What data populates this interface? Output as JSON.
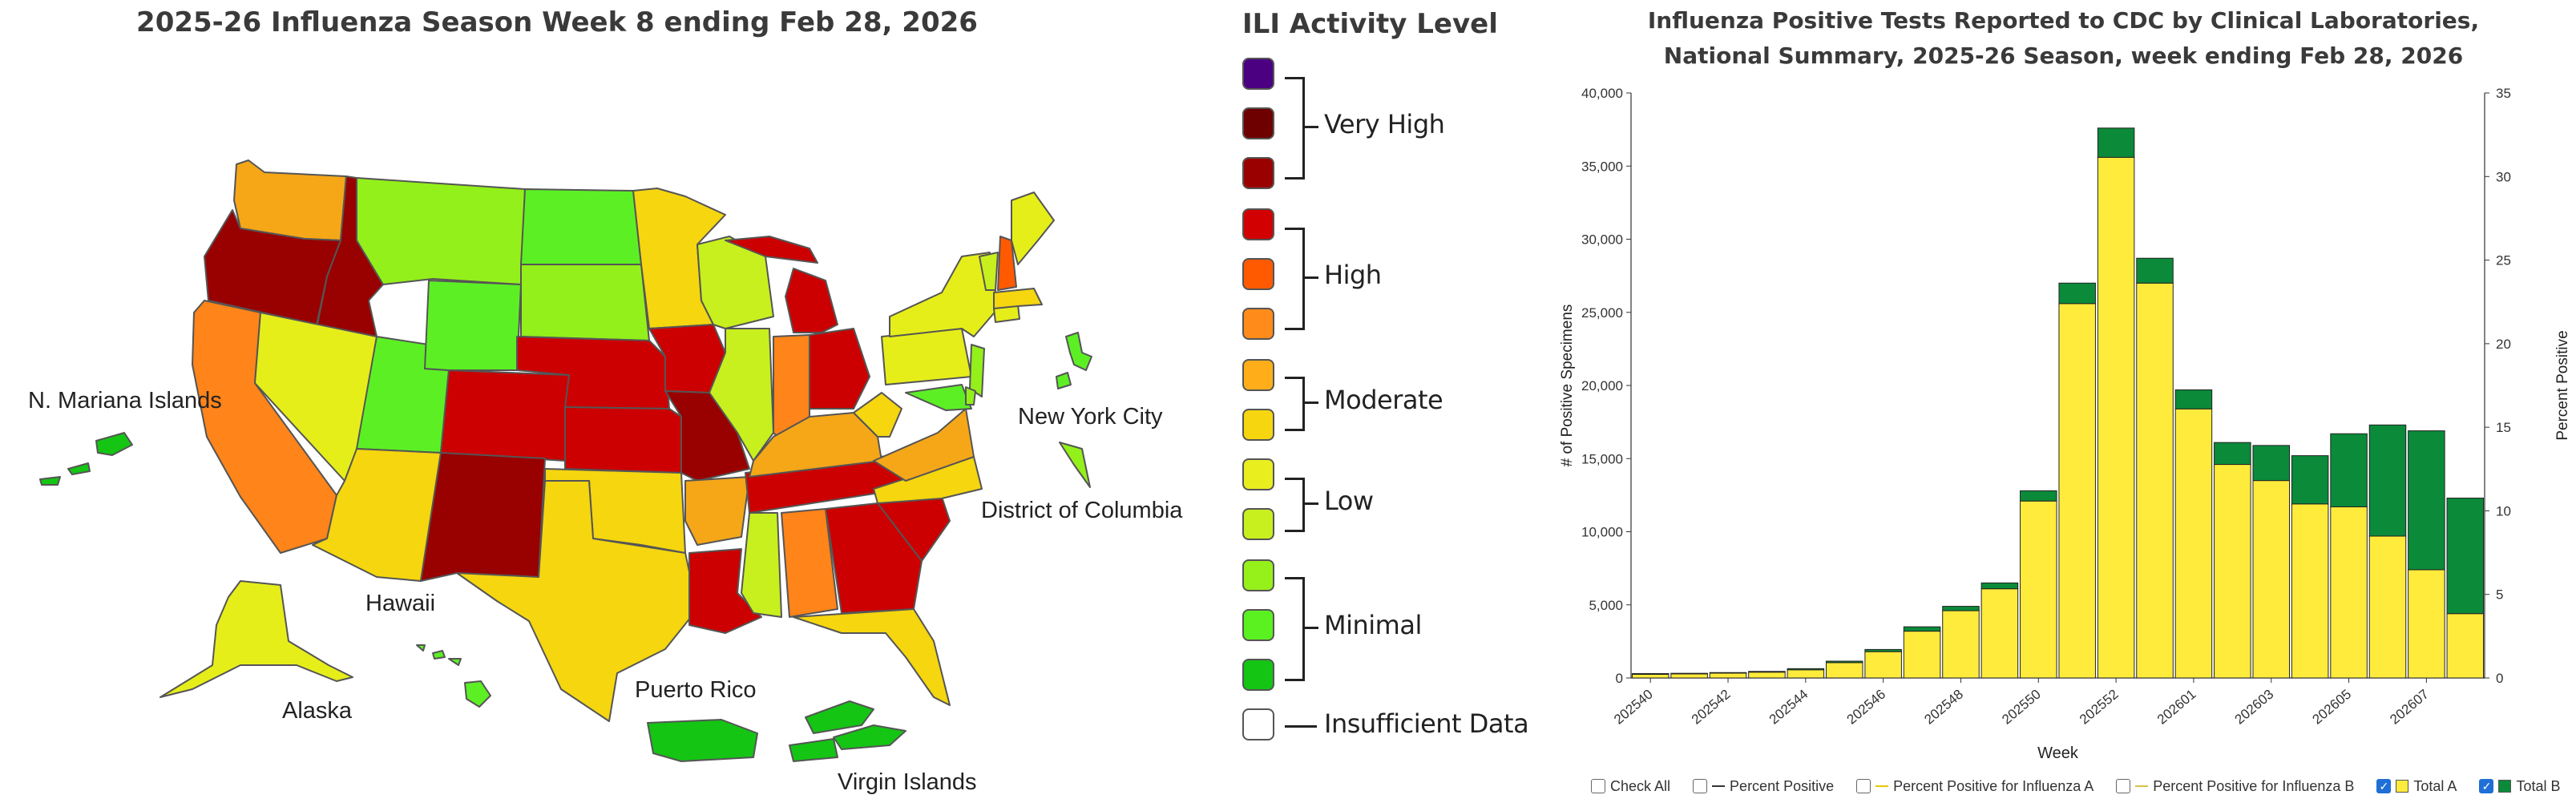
{
  "map": {
    "title": "2025-26 Influenza Season Week 8 ending Feb 28, 2026",
    "labels": {
      "mariana": "N. Mariana Islands",
      "nyc": "New York City",
      "dc": "District of Columbia",
      "hawaii": "Hawaii",
      "alaska": "Alaska",
      "puerto_rico": "Puerto Rico",
      "virgin_islands": "Virgin Islands"
    }
  },
  "legend": {
    "title": "ILI Activity Level",
    "groups": {
      "very_high": "Very High",
      "high": "High",
      "moderate": "Moderate",
      "low": "Low",
      "minimal": "Minimal",
      "insufficient": "Insufficient Data"
    },
    "colors": [
      "#4b0082",
      "#6e0000",
      "#9b0000",
      "#d20000",
      "#ff5a00",
      "#ff8c1a",
      "#ffae1a",
      "#f5d60f",
      "#e9ee1f",
      "#c8f01e",
      "#96f01a",
      "#5bf020",
      "#14c514",
      "#ffffff"
    ]
  },
  "chart": {
    "title_line1": "Influenza Positive Tests Reported to CDC by Clinical Laboratories,",
    "title_line2": "National Summary, 2025-26 Season, week ending Feb 28, 2026",
    "y_left_label": "# of Positive Specimens",
    "y_right_label": "Percent Positive",
    "x_label": "Week",
    "y_ticks": [
      "0",
      "5,000",
      "10,000",
      "15,000",
      "20,000",
      "25,000",
      "30,000",
      "35,000",
      "40,000"
    ],
    "y_right_ticks": [
      "0",
      "5",
      "10",
      "15",
      "20",
      "25",
      "30",
      "35"
    ],
    "x_tick_labels": [
      "202540",
      "202542",
      "202544",
      "202546",
      "202548",
      "202550",
      "202552",
      "202601",
      "202603",
      "202605",
      "202607"
    ]
  },
  "chart_data": {
    "type": "bar",
    "stacked": true,
    "categories": [
      "202540",
      "202541",
      "202542",
      "202543",
      "202544",
      "202545",
      "202546",
      "202547",
      "202548",
      "202549",
      "202550",
      "202551",
      "202552",
      "202553",
      "202601",
      "202602",
      "202603",
      "202604",
      "202605",
      "202606",
      "202607",
      "202608"
    ],
    "series": [
      {
        "name": "Total A",
        "color": "#ffeb3b",
        "values": [
          250,
          280,
          330,
          400,
          560,
          1050,
          1800,
          3200,
          4600,
          6100,
          12100,
          25600,
          35600,
          27000,
          18400,
          14600,
          13500,
          11900,
          11700,
          9700,
          7400,
          4400
        ]
      },
      {
        "name": "Total B",
        "color": "#0b8a3a",
        "values": [
          50,
          40,
          40,
          50,
          80,
          100,
          150,
          300,
          300,
          400,
          700,
          1400,
          2000,
          1700,
          1300,
          1500,
          2400,
          3300,
          5000,
          7600,
          9500,
          7900
        ]
      }
    ],
    "xlabel": "Week",
    "ylabel": "# of Positive Specimens",
    "y2label": "Percent Positive",
    "ylim": [
      0,
      40000
    ],
    "y2lim": [
      0,
      35
    ],
    "grid": false
  },
  "controls": {
    "check_all": "Check All",
    "pct_positive": "Percent Positive",
    "pct_a": "Percent Positive for Influenza A",
    "pct_b": "Percent Positive for Influenza B",
    "total_a": "Total A",
    "total_b": "Total B",
    "total_a_color": "#ffeb3b",
    "total_b_color": "#0b8a3a",
    "line_a_color": "#e6c800",
    "line_b_color": "#d8c04a"
  }
}
